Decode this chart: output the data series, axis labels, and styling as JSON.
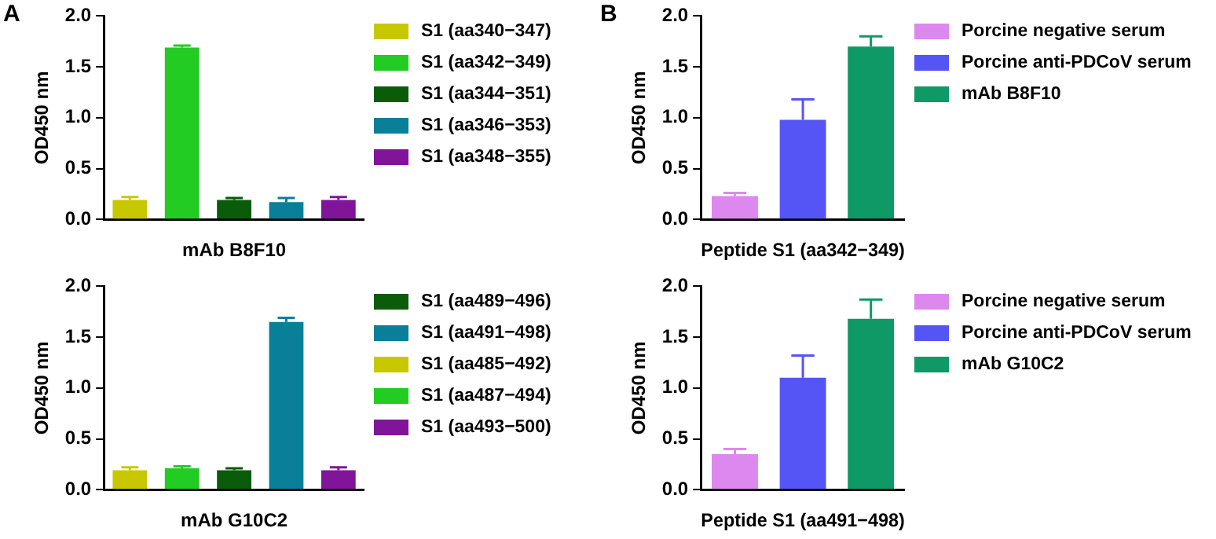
{
  "chart_data": [
    {
      "type": "bar",
      "annotations": [
        "A"
      ],
      "xlabel": "mAb B8F10",
      "ylabel": "OD450 nm",
      "categories": [
        null,
        null,
        null,
        null,
        null
      ],
      "ylim": [
        0,
        2
      ],
      "yticks": [
        {
          "value": 0,
          "label": "0.0"
        },
        {
          "value": 0.5,
          "label": "0.5"
        },
        {
          "value": 1,
          "label": "1.0"
        },
        {
          "value": 1.5,
          "label": "1.5"
        },
        {
          "value": 2,
          "label": "2.0"
        }
      ],
      "grid": false,
      "legend": "right",
      "series": [
        {
          "name": "S1 (aa340−347)",
          "color": "#c8c800",
          "values": [
            0.19,
            null,
            null,
            null,
            null
          ],
          "errors": [
            [
              0.19,
              0.22
            ],
            null,
            null,
            null,
            null
          ]
        },
        {
          "name": "S1 (aa342−349)",
          "color": "#22cc22",
          "values": [
            null,
            1.69,
            null,
            null,
            null
          ],
          "errors": [
            null,
            [
              1.69,
              1.71
            ],
            null,
            null,
            null
          ]
        },
        {
          "name": "S1 (aa344−351)",
          "color": "#0a5c0a",
          "values": [
            null,
            null,
            0.19,
            null,
            null
          ],
          "errors": [
            null,
            null,
            [
              0.19,
              0.21
            ],
            null,
            null
          ]
        },
        {
          "name": "S1 (aa346−353)",
          "color": "#0a7f99",
          "values": [
            null,
            null,
            null,
            0.17,
            null
          ],
          "errors": [
            null,
            null,
            null,
            [
              0.17,
              0.21
            ],
            null
          ]
        },
        {
          "name": "S1 (aa348−355)",
          "color": "#80159a",
          "values": [
            null,
            null,
            null,
            null,
            0.19
          ],
          "errors": [
            null,
            null,
            null,
            null,
            [
              0.19,
              0.22
            ]
          ]
        }
      ]
    },
    {
      "type": "bar",
      "xlabel": "mAb G10C2",
      "ylabel": "OD450 nm",
      "categories": [
        null,
        null,
        null,
        null,
        null
      ],
      "ylim": [
        0,
        2
      ],
      "yticks": [
        {
          "value": 0,
          "label": "0.0"
        },
        {
          "value": 0.5,
          "label": "0.5"
        },
        {
          "value": 1,
          "label": "1.0"
        },
        {
          "value": 1.5,
          "label": "1.5"
        },
        {
          "value": 2,
          "label": "2.0"
        }
      ],
      "grid": false,
      "legend": "right",
      "series": [
        {
          "name": "S1 (aa489−496)",
          "color": "#0a5c0a",
          "values": [
            null,
            null,
            0.19,
            null,
            null
          ],
          "errors": [
            null,
            null,
            [
              0.19,
              0.21
            ],
            null,
            null
          ]
        },
        {
          "name": "S1 (aa491−498)",
          "color": "#0a7f99",
          "values": [
            null,
            null,
            null,
            1.65,
            null
          ],
          "errors": [
            null,
            null,
            null,
            [
              1.65,
              1.69
            ],
            null
          ]
        },
        {
          "name": "S1 (aa485−492)",
          "color": "#c8c800",
          "values": [
            0.19,
            null,
            null,
            null,
            null
          ],
          "errors": [
            [
              0.19,
              0.22
            ],
            null,
            null,
            null,
            null
          ]
        },
        {
          "name": "S1 (aa487−494)",
          "color": "#22cc22",
          "values": [
            null,
            0.21,
            null,
            null,
            null
          ],
          "errors": [
            null,
            [
              0.21,
              0.23
            ],
            null,
            null,
            null
          ]
        },
        {
          "name": "S1 (aa493−500)",
          "color": "#80159a",
          "values": [
            null,
            null,
            null,
            null,
            0.19
          ],
          "errors": [
            null,
            null,
            null,
            null,
            [
              0.19,
              0.22
            ]
          ]
        }
      ]
    },
    {
      "type": "bar",
      "annotations": [
        "B"
      ],
      "xlabel": "Peptide S1 (aa342−349)",
      "ylabel": "OD450 nm",
      "categories": [
        null,
        null,
        null
      ],
      "ylim": [
        0,
        2
      ],
      "yticks": [
        {
          "value": 0,
          "label": "0.0"
        },
        {
          "value": 0.5,
          "label": "0.5"
        },
        {
          "value": 1,
          "label": "1.0"
        },
        {
          "value": 1.5,
          "label": "1.5"
        },
        {
          "value": 2,
          "label": "2.0"
        }
      ],
      "grid": false,
      "legend": "right",
      "series": [
        {
          "name": "Porcine negative serum",
          "color": "#dd88ee",
          "values": [
            0.23,
            null,
            null
          ],
          "errors": [
            [
              0.23,
              0.26
            ],
            null,
            null
          ]
        },
        {
          "name": "Porcine anti-PDCoV serum",
          "color": "#5555f5",
          "values": [
            null,
            0.98,
            null
          ],
          "errors": [
            null,
            [
              0.98,
              1.18
            ],
            null
          ]
        },
        {
          "name": "mAb B8F10",
          "color": "#0e9966",
          "values": [
            null,
            null,
            1.7
          ],
          "errors": [
            null,
            null,
            [
              1.7,
              1.8
            ]
          ]
        }
      ]
    },
    {
      "type": "bar",
      "xlabel": "Peptide S1 (aa491−498)",
      "ylabel": "OD450 nm",
      "categories": [
        null,
        null,
        null
      ],
      "ylim": [
        0,
        2
      ],
      "yticks": [
        {
          "value": 0,
          "label": "0.0"
        },
        {
          "value": 0.5,
          "label": "0.5"
        },
        {
          "value": 1,
          "label": "1.0"
        },
        {
          "value": 1.5,
          "label": "1.5"
        },
        {
          "value": 2,
          "label": "2.0"
        }
      ],
      "grid": false,
      "legend": "right",
      "series": [
        {
          "name": "Porcine negative serum",
          "color": "#dd88ee",
          "values": [
            0.35,
            null,
            null
          ],
          "errors": [
            [
              0.35,
              0.4
            ],
            null,
            null
          ]
        },
        {
          "name": "Porcine anti-PDCoV serum",
          "color": "#5555f5",
          "values": [
            null,
            1.1,
            null
          ],
          "errors": [
            null,
            [
              1.1,
              1.32
            ],
            null
          ]
        },
        {
          "name": "mAb G10C2",
          "color": "#0e9966",
          "values": [
            null,
            null,
            1.68
          ],
          "errors": [
            null,
            null,
            [
              1.68,
              1.87
            ]
          ]
        }
      ]
    }
  ]
}
